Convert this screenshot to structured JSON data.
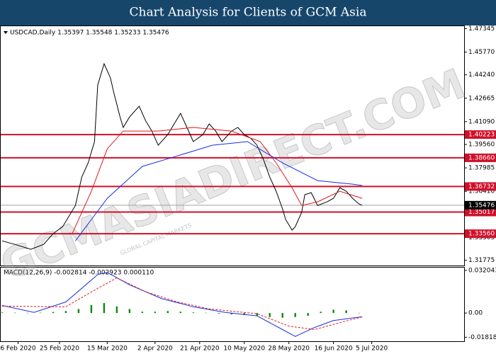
{
  "title": "Chart Analysis for Clients of GCM Asia",
  "chart_data": [
    {
      "type": "line",
      "header": "USDCAD,Daily 1.35397 1.35548 1.35233 1.35476",
      "watermark": "GCMASIADIRECT.COM",
      "watermark_sub": "GLOBAL CAPITAL MARKETS",
      "xlim": [
        0,
        145
      ],
      "xticks": [
        {
          "value": 5,
          "label": "6 Feb 2020"
        },
        {
          "value": 18,
          "label": "25 Feb 2020"
        },
        {
          "value": 33,
          "label": "15 Mar 2020"
        },
        {
          "value": 48,
          "label": "2 Apr 2020"
        },
        {
          "value": 62,
          "label": "21 Apr 2020"
        },
        {
          "value": 76,
          "label": "10 May 2020"
        },
        {
          "value": 90,
          "label": "28 May 2020"
        },
        {
          "value": 104,
          "label": "16 Jun 2020"
        },
        {
          "value": 116,
          "label": "5 Jul 2020"
        }
      ],
      "ylim": [
        1.3147,
        1.4746
      ],
      "yticks": [
        1.47345,
        {
          "value": 1.4577,
          "label": "1.45770"
        },
        {
          "value": 1.4424,
          "label": "1.44240"
        },
        1.42665,
        {
          "value": 1.4109,
          "label": "1.41090"
        },
        {
          "value": 1.3956,
          "label": "1.39560"
        },
        1.37985,
        {
          "value": 1.3641,
          "label": "1.36410"
        },
        1.33305,
        1.31775
      ],
      "levels": [
        1.40223,
        {
          "value": 1.3866,
          "label": "1.38660"
        },
        1.36732,
        1.35017,
        {
          "value": 1.3356,
          "label": "1.33560"
        }
      ],
      "level_color": "#d0102a",
      "last_price": 1.35476,
      "series": [
        {
          "color": "#000000",
          "x": [
            0,
            4,
            9,
            13,
            16,
            19,
            23,
            25,
            27,
            29,
            30,
            32,
            33,
            34,
            35,
            37,
            38,
            40,
            43,
            45,
            47,
            49,
            52,
            54,
            56,
            58,
            60,
            63,
            65,
            67,
            69,
            72,
            74,
            76,
            78,
            80,
            82,
            84,
            86,
            88,
            89,
            91,
            92,
            94,
            95,
            97,
            99,
            102,
            104,
            106,
            108,
            110,
            112,
            113
          ],
          "values": [
            1.3308,
            1.3284,
            1.3251,
            1.3284,
            1.3356,
            1.3403,
            1.3546,
            1.3737,
            1.3832,
            1.3975,
            1.4355,
            1.4498,
            1.4451,
            1.4403,
            1.4308,
            1.4141,
            1.407,
            1.4141,
            1.4213,
            1.4117,
            1.4046,
            1.3951,
            1.4022,
            1.4094,
            1.4165,
            1.407,
            1.3975,
            1.4022,
            1.4094,
            1.4046,
            1.3975,
            1.4046,
            1.407,
            1.4022,
            1.3999,
            1.3951,
            1.3856,
            1.3737,
            1.3642,
            1.3523,
            1.3451,
            1.338,
            1.3403,
            1.3499,
            1.3618,
            1.3632,
            1.3546,
            1.357,
            1.3594,
            1.3665,
            1.3642,
            1.3594,
            1.3556,
            1.35476
          ]
        },
        {
          "color": "#e01818",
          "x": [
            22,
            28,
            33,
            38,
            49,
            60,
            72,
            81,
            86,
            91,
            94,
            99,
            106,
            113
          ],
          "values": [
            1.3356,
            1.3641,
            1.3927,
            1.4046,
            1.4046,
            1.407,
            1.4046,
            1.3975,
            1.3832,
            1.3665,
            1.3546,
            1.357,
            1.3641,
            1.3594
          ]
        },
        {
          "color": "#1a2ee0",
          "x": [
            23,
            33,
            44,
            55,
            66,
            77,
            88,
            99,
            110,
            113
          ],
          "values": [
            1.3308,
            1.3594,
            1.3808,
            1.3879,
            1.3951,
            1.3975,
            1.3832,
            1.3713,
            1.3689,
            1.368
          ]
        }
      ]
    },
    {
      "type": "macd",
      "label": "MACD(12,26,9) -0.002814 -0.002923 0.000110",
      "xlim": [
        0,
        145
      ],
      "ylim": [
        -0.0212,
        0.0341
      ],
      "yticks": [
        0.032043,
        {
          "value": 0,
          "label": "0.00"
        },
        -0.018188
      ],
      "histogram": {
        "color": "#0c8a0c",
        "x": [
          0,
          4,
          8,
          12,
          16,
          20,
          24,
          28,
          32,
          36,
          40,
          44,
          48,
          52,
          56,
          60,
          64,
          68,
          72,
          76,
          80,
          84,
          88,
          92,
          96,
          100,
          104,
          108,
          112
        ],
        "values": [
          0.0005,
          0.0003,
          0.0002,
          0.0003,
          0.0008,
          0.0015,
          0.003,
          0.006,
          0.0075,
          0.005,
          0.003,
          0.001,
          0.001,
          0.0015,
          0.001,
          0.0005,
          0.0002,
          -0.0005,
          -0.001,
          -0.0015,
          -0.002,
          -0.003,
          -0.0035,
          -0.003,
          -0.002,
          0.001,
          0.0025,
          0.002,
          0.00011
        ]
      },
      "series": [
        {
          "color": "#1a2ee0",
          "dash": false,
          "x": [
            0,
            10,
            20,
            30,
            33,
            40,
            50,
            60,
            70,
            80,
            88,
            92,
            98,
            104,
            113
          ],
          "values": [
            0.0057,
            0.0005,
            0.0083,
            0.0289,
            0.0305,
            0.0212,
            0.0109,
            0.0047,
            0.0005,
            -0.0021,
            -0.0124,
            -0.0176,
            -0.0109,
            -0.0057,
            -0.002814
          ]
        },
        {
          "color": "#e01818",
          "dash": true,
          "x": [
            0,
            20,
            30,
            36,
            45,
            55,
            65,
            80,
            90,
            98,
            106,
            113
          ],
          "values": [
            0.0052,
            0.0047,
            0.0186,
            0.0264,
            0.016,
            0.0083,
            0.0031,
            -0.0005,
            -0.0098,
            -0.0124,
            -0.0072,
            -0.002923
          ]
        }
      ]
    }
  ]
}
